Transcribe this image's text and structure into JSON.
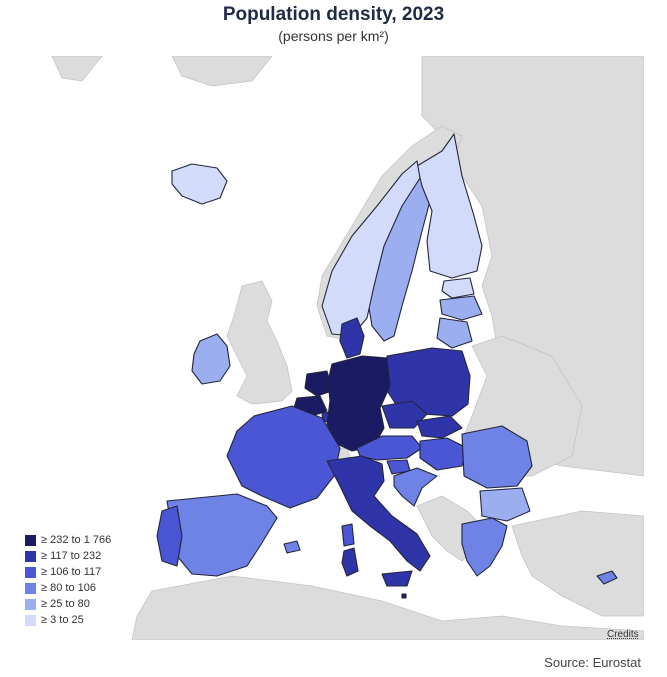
{
  "title": "Population density, 2023",
  "subtitle": "(persons per km²)",
  "source": "Source: Eurostat",
  "credits": "Credits",
  "legend": {
    "items": [
      {
        "label": "≥ 232 to 1 766",
        "color": "#1a1b63"
      },
      {
        "label": "≥ 117 to 232",
        "color": "#2f35a8"
      },
      {
        "label": "≥ 106 to 117",
        "color": "#4a56d3"
      },
      {
        "label": "≥ 80 to 106",
        "color": "#6f82e6"
      },
      {
        "label": "≥ 25 to 80",
        "color": "#9aaef0"
      },
      {
        "label": "≥ 3 to 25",
        "color": "#d2dcfa"
      }
    ]
  },
  "map_colors": {
    "ocean": "#ffffff",
    "non_eu_land": "#dcdcdc",
    "border": "#23253a"
  }
}
